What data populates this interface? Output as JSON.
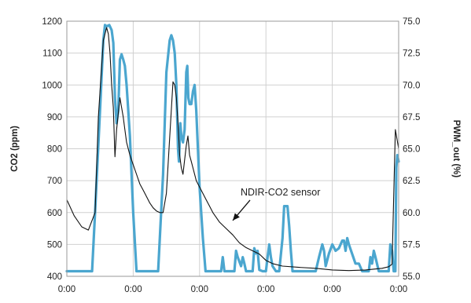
{
  "chart_data": {
    "type": "line",
    "title": "",
    "xlabel": "",
    "ylabel": "CO2 (ppm)",
    "y2label": "PWM_out (%)",
    "ylim": [
      400,
      1200
    ],
    "y2lim": [
      55.0,
      75.0
    ],
    "yticks": [
      "400",
      "500",
      "600",
      "700",
      "800",
      "900",
      "1000",
      "1100",
      "1200"
    ],
    "y2ticks": [
      "55.0",
      "57.5",
      "60.0",
      "62.5",
      "65.0",
      "67.5",
      "70.0",
      "72.5",
      "75.0"
    ],
    "xticks": [
      "0:00",
      "0:00",
      "0:00",
      "0:00",
      "0:00",
      "0:00"
    ],
    "grid": true,
    "annotation": {
      "text": "NDIR-CO2 sensor",
      "points_to_x": 0.5,
      "points_to_y": 575
    },
    "series": [
      {
        "name": "",
        "axis": "left",
        "color": "#111111",
        "x": [
          0,
          0.022,
          0.045,
          0.065,
          0.085,
          0.095,
          0.11,
          0.12,
          0.125,
          0.13,
          0.135,
          0.14,
          0.145,
          0.15,
          0.16,
          0.165,
          0.17,
          0.175,
          0.18,
          0.19,
          0.2,
          0.21,
          0.22,
          0.23,
          0.24,
          0.25,
          0.26,
          0.27,
          0.28,
          0.29,
          0.3,
          0.32,
          0.325,
          0.33,
          0.335,
          0.34,
          0.345,
          0.35,
          0.36,
          0.365,
          0.37,
          0.375,
          0.38,
          0.385,
          0.39,
          0.395,
          0.4,
          0.41,
          0.42,
          0.43,
          0.44,
          0.45,
          0.46,
          0.47,
          0.48,
          0.5,
          0.52,
          0.54,
          0.56,
          0.58,
          0.6,
          0.62,
          0.65,
          0.7,
          0.75,
          0.8,
          0.85,
          0.9,
          0.95,
          0.97,
          0.98,
          0.985,
          0.99,
          0.995,
          1.0
        ],
        "values": [
          640,
          590,
          555,
          545,
          600,
          900,
          1140,
          1180,
          1160,
          1100,
          1000,
          930,
          775,
          860,
          960,
          930,
          900,
          860,
          820,
          780,
          750,
          720,
          690,
          670,
          650,
          630,
          615,
          605,
          600,
          600,
          660,
          1010,
          1000,
          960,
          880,
          780,
          740,
          720,
          810,
          840,
          780,
          760,
          740,
          720,
          700,
          690,
          680,
          660,
          640,
          620,
          600,
          585,
          570,
          560,
          550,
          530,
          505,
          490,
          480,
          470,
          450,
          440,
          432,
          428,
          425,
          420,
          418,
          420,
          425,
          430,
          438,
          650,
          860,
          830,
          800
        ]
      },
      {
        "name": "",
        "axis": "right",
        "color": "#4ba6cf",
        "x": [
          0,
          0.03,
          0.06,
          0.076,
          0.085,
          0.1,
          0.11,
          0.115,
          0.12,
          0.128,
          0.135,
          0.14,
          0.145,
          0.15,
          0.155,
          0.16,
          0.165,
          0.17,
          0.175,
          0.18,
          0.19,
          0.2,
          0.21,
          0.215,
          0.235,
          0.26,
          0.275,
          0.29,
          0.3,
          0.31,
          0.315,
          0.32,
          0.325,
          0.33,
          0.335,
          0.338,
          0.342,
          0.345,
          0.35,
          0.355,
          0.36,
          0.363,
          0.366,
          0.37,
          0.375,
          0.38,
          0.385,
          0.39,
          0.395,
          0.4,
          0.41,
          0.418,
          0.425,
          0.43,
          0.44,
          0.45,
          0.46,
          0.465,
          0.47,
          0.475,
          0.48,
          0.5,
          0.505,
          0.51,
          0.515,
          0.525,
          0.53,
          0.535,
          0.54,
          0.56,
          0.565,
          0.57,
          0.575,
          0.58,
          0.59,
          0.6,
          0.605,
          0.61,
          0.615,
          0.62,
          0.63,
          0.64,
          0.65,
          0.655,
          0.66,
          0.665,
          0.67,
          0.675,
          0.68,
          0.69,
          0.7,
          0.71,
          0.72,
          0.75,
          0.76,
          0.77,
          0.775,
          0.78,
          0.79,
          0.8,
          0.81,
          0.82,
          0.83,
          0.835,
          0.84,
          0.845,
          0.85,
          0.87,
          0.88,
          0.89,
          0.9,
          0.91,
          0.915,
          0.92,
          0.925,
          0.93,
          0.94,
          0.95,
          0.96,
          0.97,
          0.975,
          0.98,
          0.985,
          0.99,
          0.993,
          0.996,
          1.0
        ],
        "values": [
          55.4,
          55.4,
          55.4,
          55.4,
          60.0,
          68.0,
          73.5,
          74.7,
          74.6,
          74.7,
          74.3,
          73.3,
          69.0,
          67.0,
          68.0,
          72.0,
          72.4,
          72.0,
          71.5,
          70.0,
          66.0,
          60.0,
          55.4,
          55.4,
          55.4,
          55.4,
          55.4,
          63.0,
          71.0,
          73.5,
          73.9,
          73.5,
          72.5,
          70.0,
          65.0,
          64.0,
          67.0,
          66.0,
          65.5,
          66.5,
          71.0,
          71.5,
          69.0,
          68.5,
          68.5,
          69.5,
          70.0,
          68.0,
          65.0,
          62.0,
          58.0,
          55.4,
          55.4,
          55.4,
          55.4,
          55.4,
          55.4,
          55.4,
          56.5,
          55.4,
          55.4,
          55.4,
          55.4,
          57.0,
          56.5,
          55.8,
          56.5,
          56.0,
          55.4,
          55.4,
          57.2,
          56.8,
          57.0,
          55.5,
          55.4,
          55.4,
          56.5,
          57.5,
          56.5,
          55.8,
          55.4,
          55.4,
          58.0,
          60.5,
          60.5,
          60.5,
          59.0,
          57.0,
          55.4,
          55.4,
          55.4,
          55.4,
          55.4,
          55.4,
          56.5,
          57.5,
          57.0,
          55.8,
          56.8,
          57.5,
          57.0,
          57.2,
          57.8,
          57.8,
          57.0,
          58.0,
          57.5,
          56.0,
          56.0,
          55.4,
          55.4,
          55.4,
          56.5,
          56.0,
          57.0,
          56.5,
          55.4,
          55.4,
          55.4,
          55.4,
          57.5,
          57.0,
          55.4,
          55.4,
          63.5,
          64.5,
          64.0
        ]
      }
    ]
  }
}
